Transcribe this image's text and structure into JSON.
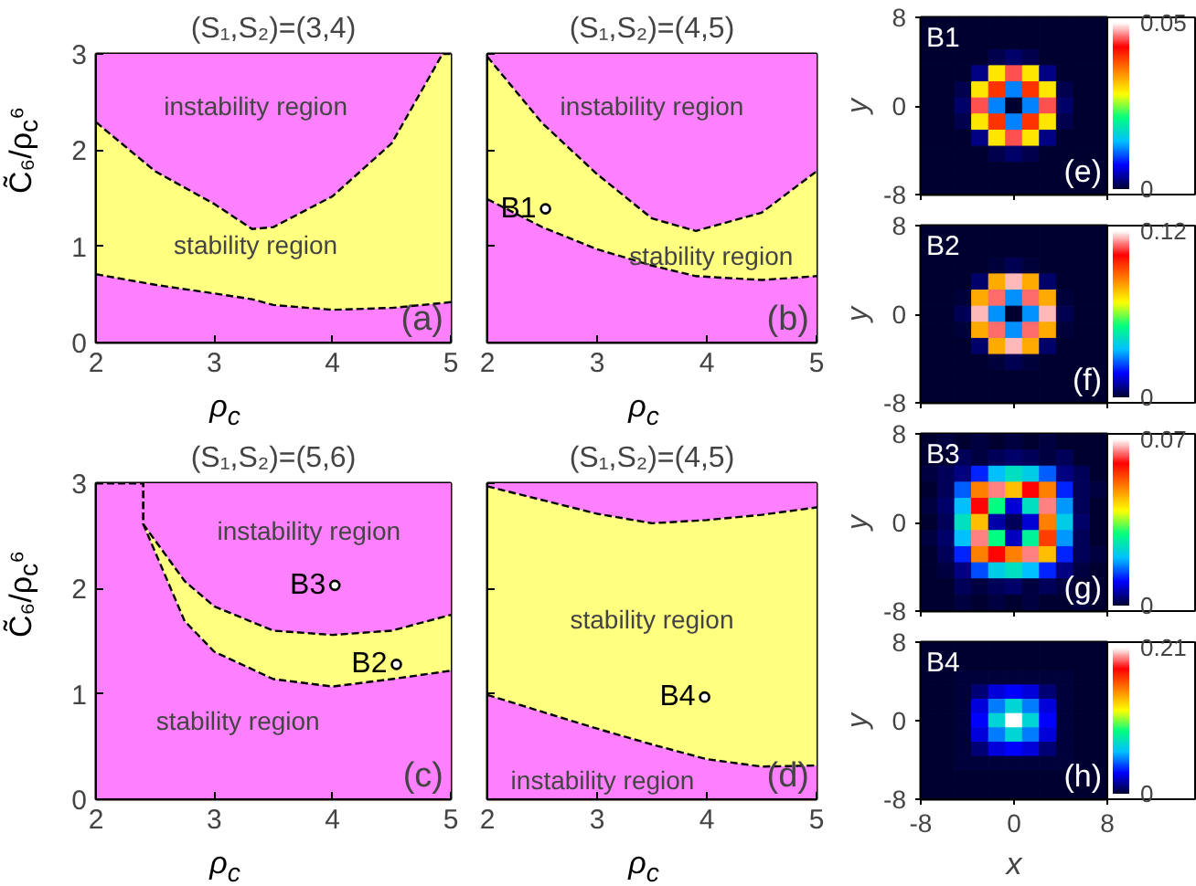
{
  "chart_data": [
    {
      "type": "area",
      "stacked": true,
      "title": "(S₁,S₂)=(3,4)",
      "xlabel": "ρ$_{c}$",
      "ylabel": "C̃₆/ρ$_{c}$⁶",
      "xlim": [
        2,
        5
      ],
      "ylim": [
        0,
        3
      ],
      "xticks": [
        2,
        3,
        4,
        5
      ],
      "yticks": [
        0,
        1,
        2,
        3
      ],
      "x": [
        2,
        2.5,
        3,
        3.32,
        3.5,
        4,
        4.5,
        4.93,
        5
      ],
      "series": [
        {
          "color": "#ff80ff",
          "line_style": "dashed",
          "values": [
            0.71,
            0.6,
            0.51,
            0.45,
            0.39,
            0.34,
            0.36,
            0.41,
            0.42
          ]
        },
        {
          "color": "#ffff80",
          "line_style": "dashed",
          "values": [
            1.58,
            1.18,
            0.93,
            0.73,
            0.81,
            1.18,
            1.71,
            2.59,
            2.58
          ]
        },
        {
          "color": "#ff80ff",
          "values": [
            0.71,
            1.22,
            1.56,
            1.82,
            1.8,
            1.48,
            0.93,
            0,
            0
          ]
        }
      ],
      "annotations": [
        "instability region",
        "stability region",
        "(a)"
      ]
    },
    {
      "type": "area",
      "stacked": true,
      "title": "(S₁,S₂)=(4,5)",
      "xlabel": "ρ$_{c}$",
      "xlim": [
        2,
        5
      ],
      "ylim": [
        0,
        3
      ],
      "xticks": [
        2,
        3,
        4,
        5
      ],
      "yticks": [
        0,
        1,
        2,
        3
      ],
      "tick_labels": "x",
      "x": [
        2,
        2.5,
        3,
        3.5,
        3.9,
        4.5,
        5
      ],
      "series": [
        {
          "color": "#ff80ff",
          "line_style": "dashed",
          "values": [
            1.49,
            1.2,
            0.97,
            0.8,
            0.69,
            0.65,
            0.69
          ]
        },
        {
          "color": "#ffff80",
          "line_style": "dashed",
          "values": [
            1.48,
            1.08,
            0.78,
            0.49,
            0.47,
            0.7,
            1.09
          ]
        },
        {
          "color": "#ff80ff",
          "values": [
            0.03,
            0.72,
            1.25,
            1.71,
            1.84,
            1.65,
            1.22
          ]
        },
        {
          "type": "scatter",
          "name": "B1",
          "color": "#000000",
          "marker": "circle",
          "x": [
            2.53
          ],
          "values": [
            1.39
          ]
        }
      ],
      "annotations": [
        "instability region",
        "stability region",
        "(b)"
      ]
    },
    {
      "type": "area",
      "stacked": true,
      "title": "(S₁,S₂)=(5,6)",
      "xlabel": "ρ$_{c}$",
      "ylabel": "C̃₆/ρ$_{c}$⁶",
      "xlim": [
        2,
        5
      ],
      "ylim": [
        0,
        3
      ],
      "xticks": [
        2,
        3,
        4,
        5
      ],
      "yticks": [
        0,
        1,
        2,
        3
      ],
      "x": [
        2,
        2.4,
        2.4,
        2.75,
        3,
        3.5,
        4,
        4.5,
        5
      ],
      "series": [
        {
          "color": "#ff80ff",
          "line_style": "dashed",
          "values": [
            3,
            3,
            2.61,
            1.69,
            1.4,
            1.14,
            1.07,
            1.14,
            1.22
          ]
        },
        {
          "color": "#ffff80",
          "line_style": "dashed",
          "values": [
            0,
            0,
            0,
            0.38,
            0.43,
            0.46,
            0.49,
            0.46,
            0.53
          ]
        },
        {
          "color": "#ff80ff",
          "values": [
            0,
            0,
            0.39,
            0.93,
            1.17,
            1.4,
            1.44,
            1.4,
            1.25
          ]
        },
        {
          "type": "scatter",
          "name": "B3",
          "color": "#000000",
          "marker": "circle",
          "x": [
            4.02
          ],
          "values": [
            2.03
          ]
        },
        {
          "type": "scatter",
          "name": "B2",
          "color": "#000000",
          "marker": "circle",
          "x": [
            4.54
          ],
          "values": [
            1.28
          ]
        }
      ],
      "annotations": [
        "instability region",
        "stability region",
        "(c)"
      ]
    },
    {
      "type": "area",
      "stacked": true,
      "title": "(S₁,S₂)=(4,5)",
      "xlabel": "ρ$_{c}$",
      "xlim": [
        2,
        5
      ],
      "ylim": [
        0,
        3
      ],
      "xticks": [
        2,
        3,
        4,
        5
      ],
      "yticks": [
        0,
        1,
        2,
        3
      ],
      "tick_labels": "x",
      "x": [
        2,
        3,
        3.5,
        4,
        4.5,
        5
      ],
      "series": [
        {
          "color": "#ff80ff",
          "line_style": "dashed",
          "values": [
            0.99,
            0.67,
            0.52,
            0.38,
            0.31,
            0.32
          ]
        },
        {
          "color": "#ffff80",
          "line_style": "dashed",
          "values": [
            1.98,
            2.04,
            2.1,
            2.27,
            2.39,
            2.45
          ]
        },
        {
          "color": "#ff80ff",
          "values": [
            0.03,
            0.29,
            0.38,
            0.35,
            0.3,
            0.23
          ]
        },
        {
          "type": "scatter",
          "name": "B4",
          "color": "#000000",
          "marker": "circle",
          "x": [
            3.98
          ],
          "values": [
            0.97
          ]
        }
      ],
      "annotations": [
        "stability region",
        "instability region",
        "(d)"
      ]
    },
    {
      "type": "heatmap",
      "ylabel": "y",
      "xlim": [
        -8,
        8
      ],
      "ylim": [
        -8,
        8
      ],
      "xticks": [
        {
          "value": -8,
          "label": null
        },
        {
          "value": 0,
          "label": null
        },
        {
          "value": 8,
          "label": null
        }
      ],
      "yticks": [
        -8,
        0,
        8
      ],
      "clim": [
        0,
        0.05
      ],
      "cticks": [
        0,
        0.05
      ],
      "tick_labels": "y",
      "annotations": [
        "B1",
        "(e)"
      ],
      "cells": [
        [
          0,
          0,
          0,
          0,
          0,
          0,
          0,
          0,
          0,
          0,
          0
        ],
        [
          0,
          0,
          0,
          0,
          0,
          0,
          0,
          0,
          0,
          0,
          0
        ],
        [
          0,
          0,
          0,
          0,
          0.001,
          0.002,
          0.001,
          0,
          0,
          0,
          0
        ],
        [
          0,
          0,
          0,
          0.003,
          0.03,
          0.045,
          0.03,
          0.003,
          0,
          0,
          0
        ],
        [
          0,
          0,
          0.001,
          0.03,
          0.04,
          0.012,
          0.04,
          0.03,
          0.001,
          0,
          0
        ],
        [
          0,
          0,
          0.002,
          0.045,
          0.012,
          0,
          0.012,
          0.045,
          0.002,
          0,
          0
        ],
        [
          0,
          0,
          0.001,
          0.03,
          0.04,
          0.012,
          0.04,
          0.03,
          0.001,
          0,
          0
        ],
        [
          0,
          0,
          0,
          0.003,
          0.03,
          0.045,
          0.03,
          0.003,
          0,
          0,
          0
        ],
        [
          0,
          0,
          0,
          0,
          0.001,
          0.002,
          0.001,
          0,
          0,
          0,
          0
        ],
        [
          0,
          0,
          0,
          0,
          0,
          0,
          0,
          0,
          0,
          0,
          0
        ],
        [
          0,
          0,
          0,
          0,
          0,
          0,
          0,
          0,
          0,
          0,
          0
        ]
      ]
    },
    {
      "type": "heatmap",
      "ylabel": "y",
      "xlim": [
        -8,
        8
      ],
      "ylim": [
        -8,
        8
      ],
      "xticks": [
        {
          "value": -8,
          "label": null
        },
        {
          "value": 0,
          "label": null
        },
        {
          "value": 8,
          "label": null
        }
      ],
      "yticks": [
        -8,
        0,
        8
      ],
      "clim": [
        0,
        0.12
      ],
      "cticks": [
        0,
        0.12
      ],
      "tick_labels": "y",
      "annotations": [
        "B2",
        "(f)"
      ],
      "cells": [
        [
          0,
          0,
          0,
          0,
          0,
          0,
          0,
          0,
          0,
          0,
          0
        ],
        [
          0,
          0,
          0,
          0,
          0,
          0,
          0,
          0,
          0,
          0,
          0
        ],
        [
          0,
          0,
          0,
          0,
          0.001,
          0.003,
          0.001,
          0,
          0,
          0,
          0
        ],
        [
          0,
          0,
          0,
          0.005,
          0.08,
          0.115,
          0.08,
          0.005,
          0,
          0,
          0
        ],
        [
          0,
          0,
          0.001,
          0.08,
          0.11,
          0.03,
          0.11,
          0.08,
          0.001,
          0,
          0
        ],
        [
          0,
          0,
          0.003,
          0.115,
          0.03,
          0,
          0.03,
          0.115,
          0.003,
          0,
          0
        ],
        [
          0,
          0,
          0.001,
          0.08,
          0.11,
          0.03,
          0.11,
          0.08,
          0.001,
          0,
          0
        ],
        [
          0,
          0,
          0,
          0.005,
          0.08,
          0.115,
          0.08,
          0.005,
          0,
          0,
          0
        ],
        [
          0,
          0,
          0,
          0,
          0.001,
          0.003,
          0.001,
          0,
          0,
          0,
          0
        ],
        [
          0,
          0,
          0,
          0,
          0,
          0,
          0,
          0,
          0,
          0,
          0
        ],
        [
          0,
          0,
          0,
          0,
          0,
          0,
          0,
          0,
          0,
          0,
          0
        ]
      ]
    },
    {
      "type": "heatmap",
      "ylabel": "y",
      "xlim": [
        -8,
        8
      ],
      "ylim": [
        -8,
        8
      ],
      "xticks": [
        {
          "value": -8,
          "label": null
        },
        {
          "value": 0,
          "label": null
        },
        {
          "value": 8,
          "label": null
        }
      ],
      "yticks": [
        -8,
        0,
        8
      ],
      "clim": [
        0,
        0.07
      ],
      "cticks": [
        0,
        0.07
      ],
      "tick_labels": "y",
      "annotations": [
        "B3",
        "(g)"
      ],
      "cells": [
        [
          0,
          0.001,
          0,
          0.001,
          0,
          0.001,
          0,
          0.001,
          0,
          0,
          0
        ],
        [
          0,
          0,
          0.002,
          0.001,
          0.002,
          0.003,
          0.002,
          0.001,
          0.002,
          0,
          0
        ],
        [
          0.001,
          0.002,
          0.004,
          0.012,
          0.02,
          0.025,
          0.022,
          0.015,
          0.004,
          0.002,
          0
        ],
        [
          0,
          0.002,
          0.015,
          0.05,
          0.065,
          0.045,
          0.06,
          0.05,
          0.012,
          0.002,
          0.001
        ],
        [
          0.001,
          0.003,
          0.02,
          0.06,
          0.03,
          0.008,
          0.025,
          0.065,
          0.018,
          0.002,
          0
        ],
        [
          0,
          0.002,
          0.025,
          0.045,
          0.006,
          0.002,
          0.008,
          0.05,
          0.022,
          0.003,
          0
        ],
        [
          0.001,
          0.003,
          0.02,
          0.065,
          0.03,
          0.007,
          0.028,
          0.055,
          0.018,
          0.002,
          0
        ],
        [
          0,
          0.002,
          0.012,
          0.05,
          0.06,
          0.05,
          0.065,
          0.045,
          0.012,
          0.002,
          0.001
        ],
        [
          0,
          0.001,
          0.004,
          0.014,
          0.022,
          0.025,
          0.02,
          0.012,
          0.004,
          0.001,
          0
        ],
        [
          0,
          0,
          0.002,
          0.001,
          0.002,
          0.003,
          0.001,
          0.002,
          0.001,
          0,
          0
        ],
        [
          0,
          0,
          0.001,
          0,
          0.001,
          0,
          0.001,
          0,
          0,
          0.001,
          0
        ]
      ]
    },
    {
      "type": "heatmap",
      "xlabel": "x",
      "ylabel": "y",
      "xlim": [
        -8,
        8
      ],
      "ylim": [
        -8,
        8
      ],
      "xticks": [
        -8,
        0,
        8
      ],
      "yticks": [
        -8,
        0,
        8
      ],
      "clim": [
        0,
        0.21
      ],
      "cticks": [
        0,
        0.21
      ],
      "annotations": [
        "B4",
        "(h)"
      ],
      "cells": [
        [
          0,
          0,
          0,
          0,
          0,
          0,
          0,
          0,
          0,
          0,
          0
        ],
        [
          0,
          0,
          0,
          0,
          0,
          0,
          0,
          0,
          0,
          0,
          0
        ],
        [
          0,
          0,
          0.002,
          0.002,
          0.002,
          0.002,
          0.002,
          0.002,
          0.002,
          0,
          0
        ],
        [
          0,
          0,
          0.002,
          0.01,
          0.025,
          0.03,
          0.025,
          0.01,
          0.002,
          0,
          0
        ],
        [
          0,
          0,
          0.002,
          0.025,
          0.05,
          0.07,
          0.05,
          0.025,
          0.002,
          0,
          0
        ],
        [
          0,
          0,
          0.002,
          0.03,
          0.07,
          0.21,
          0.07,
          0.03,
          0.002,
          0,
          0
        ],
        [
          0,
          0,
          0.002,
          0.025,
          0.05,
          0.07,
          0.05,
          0.025,
          0.002,
          0,
          0
        ],
        [
          0,
          0,
          0.002,
          0.01,
          0.025,
          0.03,
          0.025,
          0.01,
          0.002,
          0,
          0
        ],
        [
          0,
          0,
          0.002,
          0.002,
          0.002,
          0.002,
          0.002,
          0.002,
          0.002,
          0,
          0
        ],
        [
          0,
          0,
          0,
          0,
          0,
          0,
          0,
          0,
          0,
          0,
          0
        ],
        [
          0,
          0,
          0,
          0,
          0,
          0,
          0,
          0,
          0,
          0,
          0
        ]
      ]
    }
  ]
}
